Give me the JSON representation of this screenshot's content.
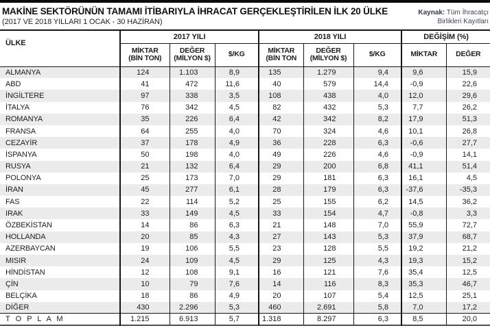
{
  "header": {
    "title": "MAKİNE SEKTÖRÜNÜN TAMAMI İTİBARIYLA İHRACAT GERÇEKLEŞTİRİLEN İLK 20 ÜLKE",
    "subtitle": "(2017 VE 2018 YILLARI 1 OCAK - 30 HAZİRAN)",
    "source_label": "Kaynak:",
    "source_line1": " Tüm İhracatçı",
    "source_line2": "Birlikleri Kayıtları"
  },
  "table": {
    "country_header": "ÜLKE",
    "groups": [
      {
        "label": "2017 YILI",
        "cols": [
          {
            "line1": "MİKTAR",
            "line2": "(BİN TON)"
          },
          {
            "line1": "DEĞER",
            "line2": "(MİLYON $)"
          },
          {
            "line1": "$/KG",
            "line2": ""
          }
        ]
      },
      {
        "label": "2018 YILI",
        "cols": [
          {
            "line1": "MİKTAR",
            "line2": "(BİN TON"
          },
          {
            "line1": "DEĞER",
            "line2": "(MİLYON $)"
          },
          {
            "line1": "$/KG",
            "line2": ""
          }
        ]
      },
      {
        "label": "DEĞİŞİM (%)",
        "cols": [
          {
            "line1": "MİKTAR",
            "line2": ""
          },
          {
            "line1": "DEĞER",
            "line2": ""
          }
        ]
      }
    ],
    "rows": [
      {
        "country": "ALMANYA",
        "values": [
          "124",
          "1.103",
          "8,9",
          "135",
          "1.279",
          "9,4",
          "9,6",
          "15,9"
        ]
      },
      {
        "country": "ABD",
        "values": [
          "41",
          "472",
          "11,6",
          "40",
          "579",
          "14,4",
          "-0,9",
          "22,6"
        ]
      },
      {
        "country": "İNGİLTERE",
        "values": [
          "97",
          "338",
          "3,5",
          "108",
          "438",
          "4,0",
          "12,0",
          "29,6"
        ]
      },
      {
        "country": "İTALYA",
        "values": [
          "76",
          "342",
          "4,5",
          "82",
          "432",
          "5,3",
          "7,7",
          "26,2"
        ]
      },
      {
        "country": "ROMANYA",
        "values": [
          "35",
          "226",
          "6,4",
          "42",
          "342",
          "8,2",
          "17,9",
          "51,3"
        ]
      },
      {
        "country": "FRANSA",
        "values": [
          "64",
          "255",
          "4,0",
          "70",
          "324",
          "4,6",
          "10,1",
          "26,8"
        ]
      },
      {
        "country": "CEZAYİR",
        "values": [
          "37",
          "178",
          "4,9",
          "36",
          "228",
          "6,3",
          "-0,6",
          "27,7"
        ]
      },
      {
        "country": "İSPANYA",
        "values": [
          "50",
          "198",
          "4,0",
          "49",
          "226",
          "4,6",
          "-0,9",
          "14,1"
        ]
      },
      {
        "country": "RUSYA",
        "values": [
          "21",
          "132",
          "6,4",
          "29",
          "200",
          "6,8",
          "41,1",
          "51,4"
        ]
      },
      {
        "country": "POLONYA",
        "values": [
          "25",
          "173",
          "7,0",
          "29",
          "181",
          "6,3",
          "16,1",
          "4,5"
        ]
      },
      {
        "country": "İRAN",
        "values": [
          "45",
          "277",
          "6,1",
          "28",
          "179",
          "6,3",
          "-37,6",
          "-35,3"
        ]
      },
      {
        "country": "FAS",
        "values": [
          "22",
          "114",
          "5,2",
          "25",
          "155",
          "6,2",
          "14,5",
          "36,2"
        ]
      },
      {
        "country": "IRAK",
        "values": [
          "33",
          "149",
          "4,5",
          "33",
          "154",
          "4,7",
          "-0,8",
          "3,3"
        ]
      },
      {
        "country": "ÖZBEKİSTAN",
        "values": [
          "14",
          "86",
          "6,3",
          "21",
          "148",
          "7,0",
          "55,9",
          "72,7"
        ]
      },
      {
        "country": "HOLLANDA",
        "values": [
          "20",
          "85",
          "4,3",
          "27",
          "143",
          "5,3",
          "37,9",
          "68,7"
        ]
      },
      {
        "country": "AZERBAYCAN",
        "values": [
          "19",
          "106",
          "5,5",
          "23",
          "128",
          "5,5",
          "19,2",
          "21,2"
        ]
      },
      {
        "country": "MISIR",
        "values": [
          "24",
          "109",
          "4,5",
          "29",
          "125",
          "4,3",
          "19,3",
          "15,2"
        ]
      },
      {
        "country": "HİNDİSTAN",
        "values": [
          "12",
          "108",
          "9,1",
          "16",
          "121",
          "7,6",
          "35,4",
          "12,5"
        ]
      },
      {
        "country": "ÇİN",
        "values": [
          "10",
          "79",
          "7,6",
          "14",
          "116",
          "8,3",
          "35,3",
          "46,7"
        ]
      },
      {
        "country": "BELÇİKA",
        "values": [
          "18",
          "86",
          "4,9",
          "20",
          "107",
          "5,4",
          "12,5",
          "25,1"
        ]
      },
      {
        "country": "DİĞER",
        "values": [
          "430",
          "2.296",
          "5,3",
          "460",
          "2.691",
          "5,8",
          "7,0",
          "17,2"
        ]
      }
    ],
    "total_row": {
      "country": "T O P L A M",
      "values": [
        "1.215",
        "6.913",
        "5,7",
        "1.318",
        "8.297",
        "6,3",
        "8,5",
        "20,0"
      ]
    }
  },
  "chart_data": {
    "type": "table",
    "title": "MAKİNE SEKTÖRÜNÜN TAMAMI İTİBARIYLA İHRACAT GERÇEKLEŞTİRİLEN İLK 20 ÜLKE",
    "subtitle": "(2017 VE 2018 YILLARI 1 OCAK - 30 HAZİRAN)",
    "source": "Kaynak: Tüm İhracatçı Birlikleri Kayıtları",
    "columns": [
      "ÜLKE",
      "2017 MİKTAR (BİN TON)",
      "2017 DEĞER (MİLYON $)",
      "2017 $/KG",
      "2018 MİKTAR (BİN TON)",
      "2018 DEĞER (MİLYON $)",
      "2018 $/KG",
      "DEĞİŞİM MİKTAR (%)",
      "DEĞİŞİM DEĞER (%)"
    ],
    "rows": [
      [
        "ALMANYA",
        124,
        1103,
        8.9,
        135,
        1279,
        9.4,
        9.6,
        15.9
      ],
      [
        "ABD",
        41,
        472,
        11.6,
        40,
        579,
        14.4,
        -0.9,
        22.6
      ],
      [
        "İNGİLTERE",
        97,
        338,
        3.5,
        108,
        438,
        4.0,
        12.0,
        29.6
      ],
      [
        "İTALYA",
        76,
        342,
        4.5,
        82,
        432,
        5.3,
        7.7,
        26.2
      ],
      [
        "ROMANYA",
        35,
        226,
        6.4,
        42,
        342,
        8.2,
        17.9,
        51.3
      ],
      [
        "FRANSA",
        64,
        255,
        4.0,
        70,
        324,
        4.6,
        10.1,
        26.8
      ],
      [
        "CEZAYİR",
        37,
        178,
        4.9,
        36,
        228,
        6.3,
        -0.6,
        27.7
      ],
      [
        "İSPANYA",
        50,
        198,
        4.0,
        49,
        226,
        4.6,
        -0.9,
        14.1
      ],
      [
        "RUSYA",
        21,
        132,
        6.4,
        29,
        200,
        6.8,
        41.1,
        51.4
      ],
      [
        "POLONYA",
        25,
        173,
        7.0,
        29,
        181,
        6.3,
        16.1,
        4.5
      ],
      [
        "İRAN",
        45,
        277,
        6.1,
        28,
        179,
        6.3,
        -37.6,
        -35.3
      ],
      [
        "FAS",
        22,
        114,
        5.2,
        25,
        155,
        6.2,
        14.5,
        36.2
      ],
      [
        "IRAK",
        33,
        149,
        4.5,
        33,
        154,
        4.7,
        -0.8,
        3.3
      ],
      [
        "ÖZBEKİSTAN",
        14,
        86,
        6.3,
        21,
        148,
        7.0,
        55.9,
        72.7
      ],
      [
        "HOLLANDA",
        20,
        85,
        4.3,
        27,
        143,
        5.3,
        37.9,
        68.7
      ],
      [
        "AZERBAYCAN",
        19,
        106,
        5.5,
        23,
        128,
        5.5,
        19.2,
        21.2
      ],
      [
        "MISIR",
        24,
        109,
        4.5,
        29,
        125,
        4.3,
        19.3,
        15.2
      ],
      [
        "HİNDİSTAN",
        12,
        108,
        9.1,
        16,
        121,
        7.6,
        35.4,
        12.5
      ],
      [
        "ÇİN",
        10,
        79,
        7.6,
        14,
        116,
        8.3,
        35.3,
        46.7
      ],
      [
        "BELÇİKA",
        18,
        86,
        4.9,
        20,
        107,
        5.4,
        12.5,
        25.1
      ],
      [
        "DİĞER",
        430,
        2296,
        5.3,
        460,
        2691,
        5.8,
        7.0,
        17.2
      ],
      [
        "TOPLAM",
        1215,
        6913,
        5.7,
        1318,
        8297,
        6.3,
        8.5,
        20.0
      ]
    ]
  }
}
